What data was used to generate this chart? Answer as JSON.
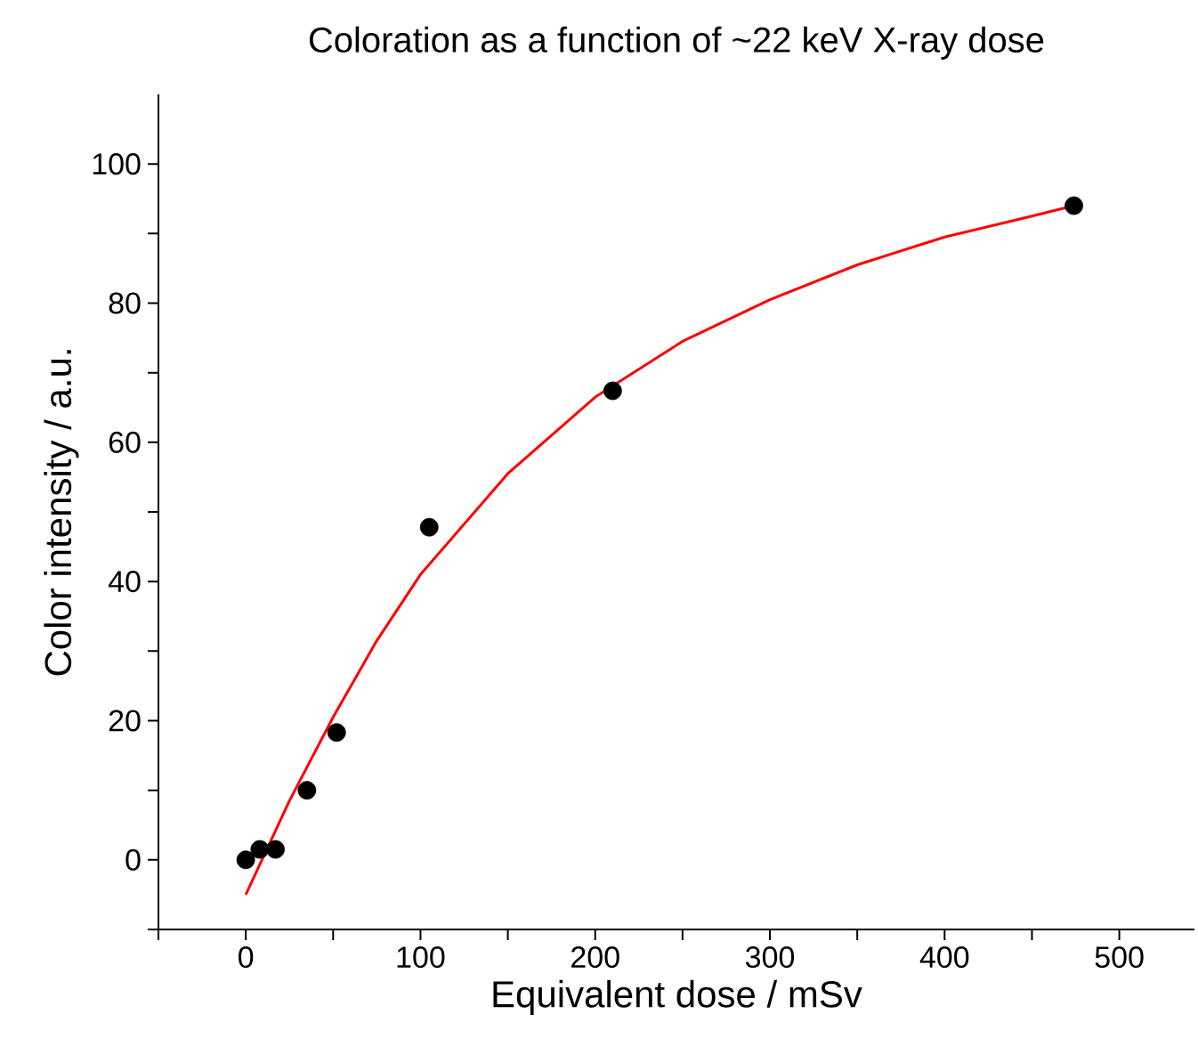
{
  "chart_data": {
    "type": "scatter",
    "title": "Coloration as a function of ~22 keV X-ray dose",
    "xlabel": "Equivalent dose / mSv",
    "ylabel": "Color intensity / a.u.",
    "xlim": [
      -50,
      543
    ],
    "ylim": [
      -10,
      110
    ],
    "xticks": [
      {
        "value": -50,
        "label": null
      },
      0,
      {
        "value": 50,
        "label": null
      },
      100,
      {
        "value": 150,
        "label": null
      },
      200,
      {
        "value": 250,
        "label": null
      },
      300,
      {
        "value": 350,
        "label": null
      },
      400,
      {
        "value": 450,
        "label": null
      },
      500
    ],
    "yticks": [
      {
        "value": -10,
        "label": null
      },
      0,
      {
        "value": 10,
        "label": null
      },
      20,
      {
        "value": 30,
        "label": null
      },
      40,
      {
        "value": 50,
        "label": null
      },
      60,
      {
        "value": 70,
        "label": null
      },
      80,
      {
        "value": 90,
        "label": null
      },
      100
    ],
    "series": [
      {
        "marker": "circle",
        "color": "#000000",
        "x": [
          0,
          8,
          17,
          35,
          52,
          105,
          210,
          474
        ],
        "values": [
          0,
          1.5,
          1.5,
          10,
          18.3,
          47.8,
          67.4,
          94
        ]
      },
      {
        "type": "line",
        "marker": "none",
        "color": "#ff0000",
        "x": [
          0,
          25,
          50,
          75,
          100,
          150,
          200,
          250,
          300,
          350,
          400,
          450,
          474
        ],
        "values": [
          -5,
          8.5,
          20.5,
          31.5,
          41,
          55.5,
          66.5,
          74.5,
          80.5,
          85.5,
          89.5,
          92.5,
          94
        ]
      }
    ]
  }
}
